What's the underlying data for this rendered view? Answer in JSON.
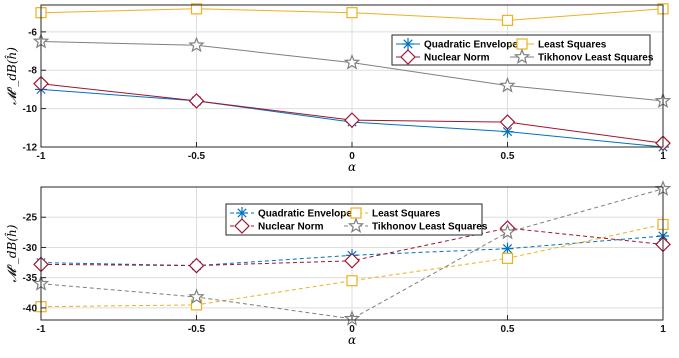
{
  "chart_data": [
    {
      "type": "line",
      "x": [
        -1,
        -0.5,
        0,
        0.5,
        1
      ],
      "xlabel": "α",
      "ylabel": "𝓜⁰_dB(ĥ)",
      "xlim": [
        -1,
        1
      ],
      "ylim": [
        -12,
        -4.6
      ],
      "xticks": [
        "-1",
        "-0.5",
        "0",
        "0.5",
        "1"
      ],
      "yticks": [
        "-6",
        "-8",
        "-10",
        "-12"
      ],
      "ytick_values": [
        -6,
        -8,
        -10,
        -12
      ],
      "grid": true,
      "legend_position": "top-right",
      "series": [
        {
          "name": "Quadratic Envelope",
          "values": [
            -9.0,
            -9.6,
            -10.7,
            -11.2,
            -12.0
          ],
          "color": "#0072BD",
          "marker": "asterisk",
          "dash": "solid"
        },
        {
          "name": "Least Squares",
          "values": [
            -5.0,
            -4.8,
            -5.0,
            -5.4,
            -4.8
          ],
          "color": "#EDB120",
          "marker": "square",
          "dash": "solid"
        },
        {
          "name": "Nuclear Norm",
          "values": [
            -8.7,
            -9.6,
            -10.6,
            -10.7,
            -11.8
          ],
          "color": "#A2142F",
          "marker": "diamond",
          "dash": "solid"
        },
        {
          "name": "Tikhonov Least Squares",
          "values": [
            -6.5,
            -6.7,
            -7.6,
            -8.8,
            -9.6
          ],
          "color": "#7F7F7F",
          "marker": "star",
          "dash": "solid"
        }
      ]
    },
    {
      "type": "line",
      "x": [
        -1,
        -0.5,
        0,
        0.5,
        1
      ],
      "xlabel": "α",
      "ylabel": "𝓜⁰_dB(ĥ)",
      "xlim": [
        -1,
        1
      ],
      "ylim": [
        -42,
        -20
      ],
      "xticks": [
        "-1",
        "-0.5",
        "0",
        "0.5",
        "1"
      ],
      "yticks": [
        "-25",
        "-30",
        "-35",
        "-40"
      ],
      "ytick_values": [
        -25,
        -30,
        -35,
        -40
      ],
      "grid": true,
      "legend_position": "top-center",
      "series": [
        {
          "name": "Quadratic Envelope",
          "values": [
            -32.5,
            -33.0,
            -31.3,
            -30.2,
            -28.1
          ],
          "color": "#0072BD",
          "marker": "asterisk",
          "dash": "dashed"
        },
        {
          "name": "Least Squares",
          "values": [
            -39.8,
            -39.5,
            -35.5,
            -31.8,
            -26.2
          ],
          "color": "#EDB120",
          "marker": "square",
          "dash": "dashed"
        },
        {
          "name": "Nuclear Norm",
          "values": [
            -32.8,
            -33.0,
            -32.2,
            -26.8,
            -29.5
          ],
          "color": "#A2142F",
          "marker": "diamond",
          "dash": "dashed"
        },
        {
          "name": "Tikhonov Least Squares",
          "values": [
            -36.0,
            -38.2,
            -41.8,
            -27.5,
            -20.3
          ],
          "color": "#7F7F7F",
          "marker": "star",
          "dash": "dashed"
        }
      ]
    }
  ]
}
